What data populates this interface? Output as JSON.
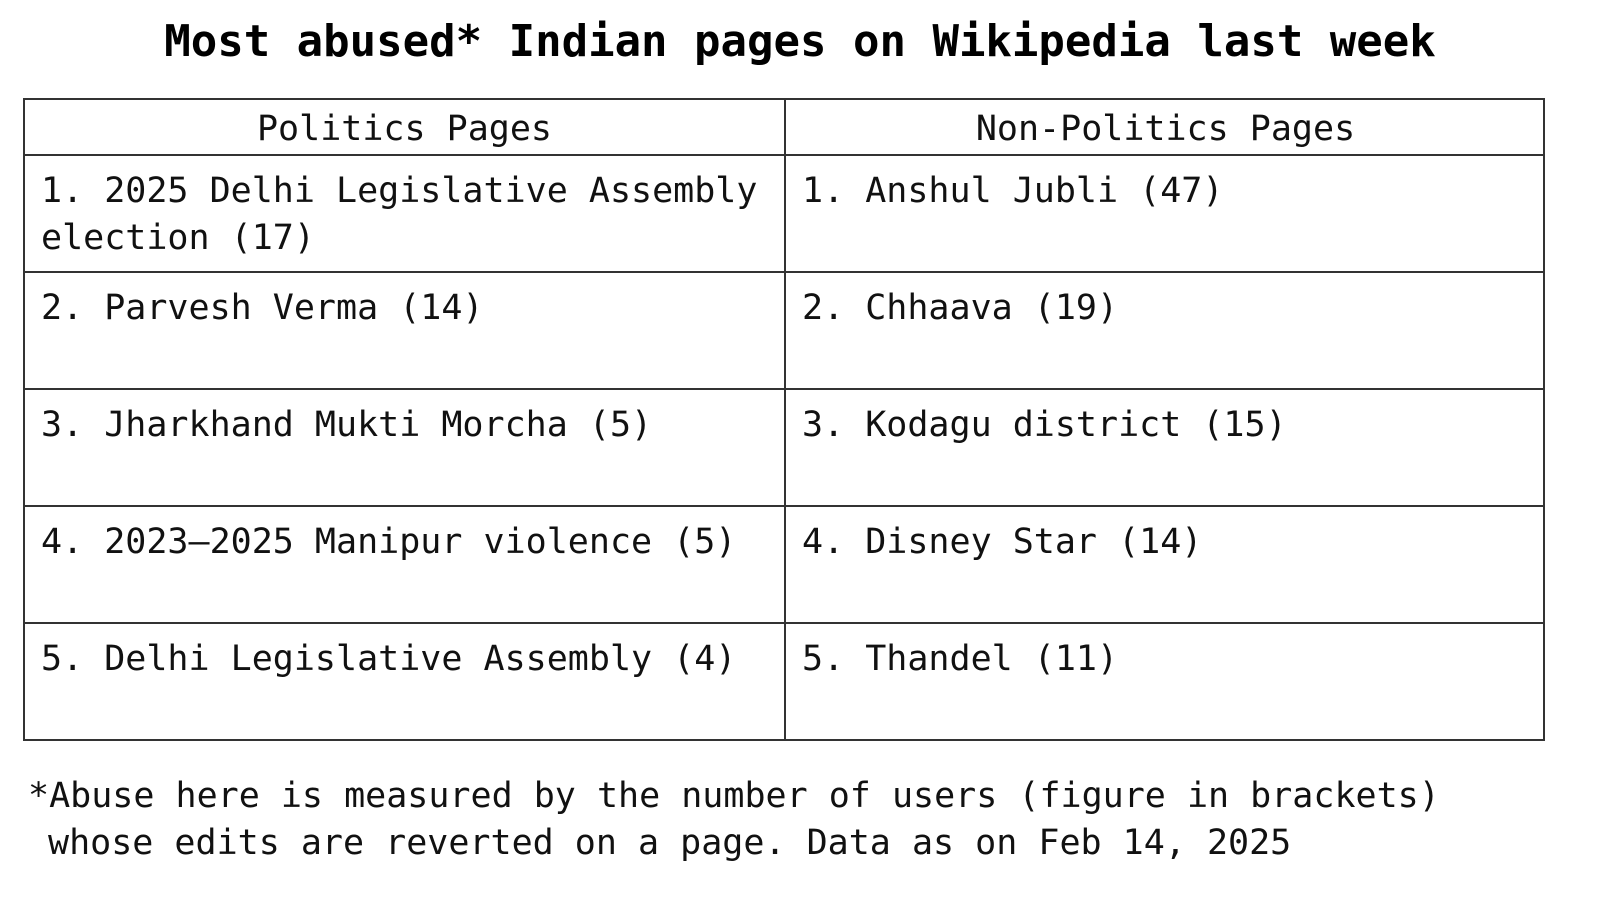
{
  "chart_data": {
    "type": "table",
    "title": "Most abused* Indian pages on Wikipedia last week",
    "columns": [
      "Politics Pages",
      "Non-Politics Pages"
    ],
    "rows": [
      [
        "1. 2025 Delhi Legislative Assembly election (17)",
        "1. Anshul Jubli (47)"
      ],
      [
        "2. Parvesh Verma (14)",
        "2. Chhaava (19)"
      ],
      [
        "3. Jharkhand Mukti Morcha (5)",
        "3. Kodagu district (15)"
      ],
      [
        "4. 2023–2025 Manipur violence (5)",
        "4. Disney Star (14)"
      ],
      [
        "5. Delhi Legislative Assembly (4)",
        "5. Thandel (11)"
      ]
    ],
    "politics": [
      {
        "rank": 1,
        "page": "2025 Delhi Legislative Assembly election",
        "users": 17
      },
      {
        "rank": 2,
        "page": "Parvesh Verma",
        "users": 14
      },
      {
        "rank": 3,
        "page": "Jharkhand Mukti Morcha",
        "users": 5
      },
      {
        "rank": 4,
        "page": "2023–2025 Manipur violence",
        "users": 5
      },
      {
        "rank": 5,
        "page": "Delhi Legislative Assembly",
        "users": 4
      }
    ],
    "non_politics": [
      {
        "rank": 1,
        "page": "Anshul Jubli",
        "users": 47
      },
      {
        "rank": 2,
        "page": "Chhaava",
        "users": 19
      },
      {
        "rank": 3,
        "page": "Kodagu district",
        "users": 15
      },
      {
        "rank": 4,
        "page": "Disney Star",
        "users": 14
      },
      {
        "rank": 5,
        "page": "Thandel",
        "users": 11
      }
    ],
    "footnote": {
      "line1": "*Abuse here is measured by the number of users (figure in brackets)",
      "line2": "whose edits are reverted on a page. Data as on Feb 14, 2025"
    }
  }
}
